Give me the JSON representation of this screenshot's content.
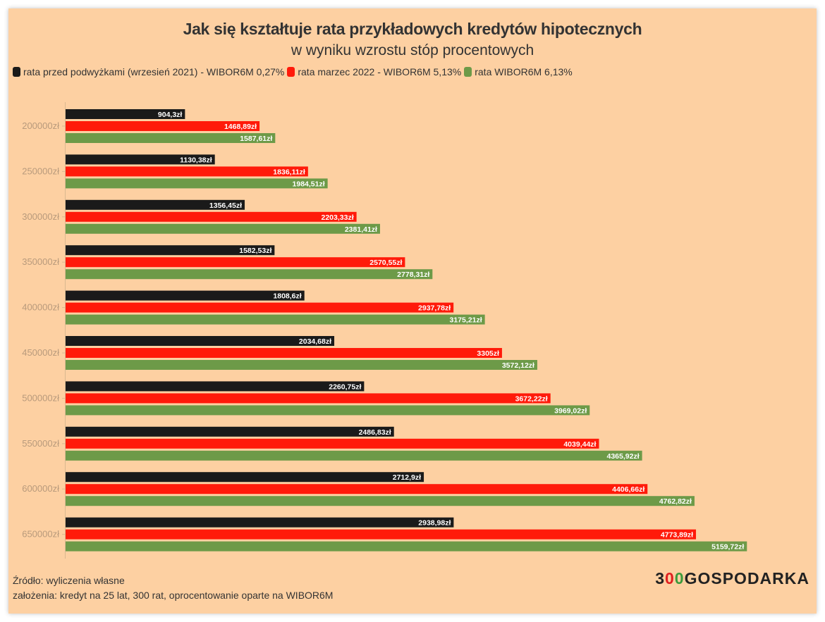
{
  "title": "Jak się kształtuje rata przykładowych kredytów hipotecznych",
  "subtitle": "w wyniku wzrostu stóp procentowych",
  "legend": [
    {
      "label": "rata przed podwyżkami (wrzesień 2021) - WIBOR6M 0,27%",
      "color": "#1a1a1a"
    },
    {
      "label": "rata marzec 2022 - WIBOR6M 5,13%",
      "color": "#ff1a0a"
    },
    {
      "label": "rata WIBOR6M 6,13%",
      "color": "#6d9a48"
    }
  ],
  "chart_data": {
    "type": "bar",
    "orientation": "horizontal",
    "categories": [
      "200000zł",
      "250000zł",
      "300000zł",
      "350000zł",
      "400000zł",
      "450000zł",
      "500000zł",
      "550000zł",
      "600000zł",
      "650000zł"
    ],
    "xlim": [
      0,
      5500
    ],
    "series": [
      {
        "name": "rata przed podwyżkami (wrzesień 2021) - WIBOR6M 0,27%",
        "color": "#1a1a1a",
        "values": [
          904.3,
          1130.38,
          1356.45,
          1582.53,
          1808.6,
          2034.68,
          2260.75,
          2486.83,
          2712.9,
          2938.98
        ],
        "labels": [
          "904,3zł",
          "1130,38zł",
          "1356,45zł",
          "1582,53zł",
          "1808,6zł",
          "2034,68zł",
          "2260,75zł",
          "2486,83zł",
          "2712,9zł",
          "2938,98zł"
        ]
      },
      {
        "name": "rata marzec 2022 - WIBOR6M 5,13%",
        "color": "#ff1a0a",
        "values": [
          1468.89,
          1836.11,
          2203.33,
          2570.55,
          2937.78,
          3305,
          3672.22,
          4039.44,
          4406.66,
          4773.89
        ],
        "labels": [
          "1468,89zł",
          "1836,11zł",
          "2203,33zł",
          "2570,55zł",
          "2937,78zł",
          "3305zł",
          "3672,22zł",
          "4039,44zł",
          "4406,66zł",
          "4773,89zł"
        ]
      },
      {
        "name": "rata WIBOR6M 6,13%",
        "color": "#6d9a48",
        "values": [
          1587.61,
          1984.51,
          2381.41,
          2778.31,
          3175.21,
          3572.12,
          3969.02,
          4365.92,
          4762.82,
          5159.72
        ],
        "labels": [
          "1587,61zł",
          "1984,51zł",
          "2381,41zł",
          "2778,31zł",
          "3175,21zł",
          "3572,12zł",
          "3969,02zł",
          "4365,92zł",
          "4762,82zł",
          "5159,72zł"
        ]
      }
    ]
  },
  "footer": {
    "source": "Źródło: wyliczenia własne",
    "assumptions": "założenia: kredyt na 25 lat, 300 rat, oprocentowanie oparte na WIBOR6M"
  },
  "logo": {
    "prefix": "3",
    "o1": "0",
    "o2": "0",
    "suffix": "GOSPODARKA",
    "o1_color": "#e02020",
    "o2_color": "#3c9a3c"
  }
}
